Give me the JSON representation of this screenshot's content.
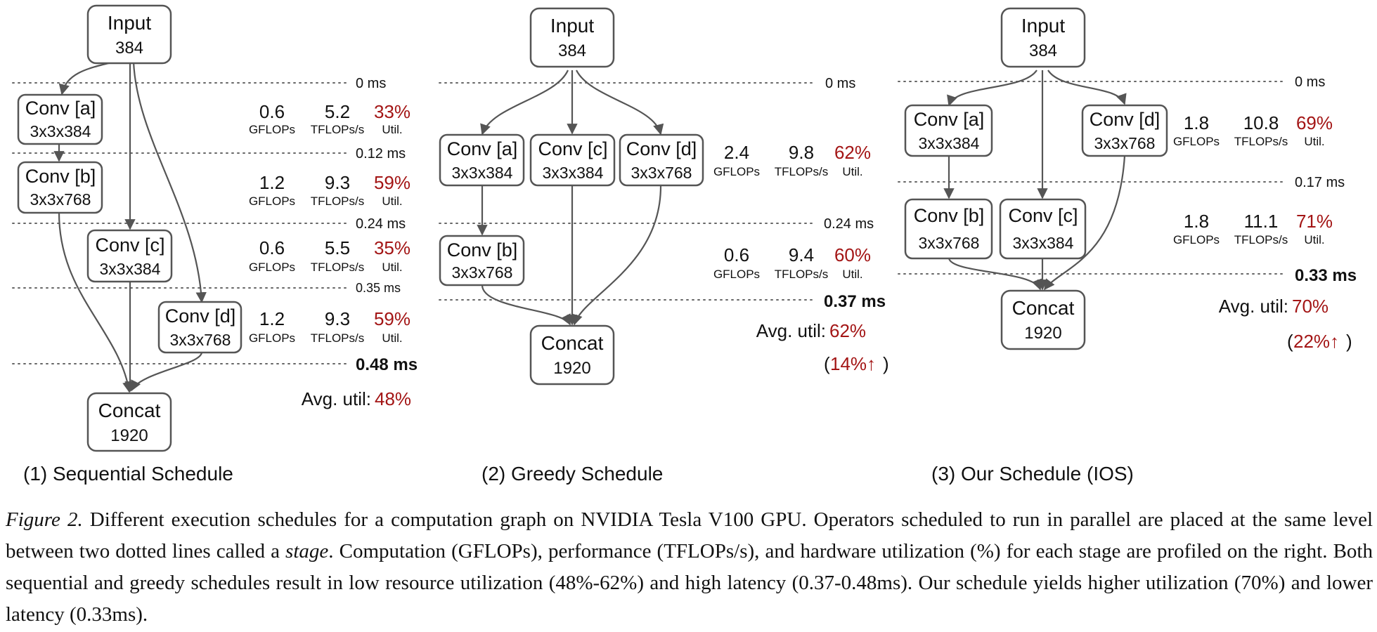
{
  "panels": {
    "sequential": {
      "title": "(1) Sequential Schedule",
      "nodes": {
        "input": {
          "name": "Input",
          "size": "384"
        },
        "conv_a": {
          "name": "Conv [a]",
          "size": "3x3x384"
        },
        "conv_b": {
          "name": "Conv [b]",
          "size": "3x3x768"
        },
        "conv_c": {
          "name": "Conv [c]",
          "size": "3x3x384"
        },
        "conv_d": {
          "name": "Conv [d]",
          "size": "3x3x768"
        },
        "concat": {
          "name": "Concat",
          "size": "1920"
        }
      },
      "times": [
        "0 ms",
        "0.12 ms",
        "0.24 ms",
        "0.35 ms",
        "0.48 ms"
      ],
      "stages": [
        {
          "gflops": "0.6",
          "tflops": "5.2",
          "util": "33%"
        },
        {
          "gflops": "1.2",
          "tflops": "9.3",
          "util": "59%"
        },
        {
          "gflops": "0.6",
          "tflops": "5.5",
          "util": "35%"
        },
        {
          "gflops": "1.2",
          "tflops": "9.3",
          "util": "59%"
        }
      ],
      "avg_label": "Avg. util:",
      "avg_value": "48%"
    },
    "greedy": {
      "title": "(2) Greedy Schedule",
      "nodes": {
        "input": {
          "name": "Input",
          "size": "384"
        },
        "conv_a": {
          "name": "Conv [a]",
          "size": "3x3x384"
        },
        "conv_c": {
          "name": "Conv [c]",
          "size": "3x3x384"
        },
        "conv_d": {
          "name": "Conv [d]",
          "size": "3x3x768"
        },
        "conv_b": {
          "name": "Conv [b]",
          "size": "3x3x768"
        },
        "concat": {
          "name": "Concat",
          "size": "1920"
        }
      },
      "times": [
        "0 ms",
        "0.24 ms",
        "0.37 ms"
      ],
      "stages": [
        {
          "gflops": "2.4",
          "tflops": "9.8",
          "util": "62%"
        },
        {
          "gflops": "0.6",
          "tflops": "9.4",
          "util": "60%"
        }
      ],
      "avg_label": "Avg. util:",
      "avg_value": "62%",
      "gain_open": "(",
      "gain_value": "14%↑",
      "gain_close": ")"
    },
    "ios": {
      "title": "(3)  Our Schedule (IOS)",
      "nodes": {
        "input": {
          "name": "Input",
          "size": "384"
        },
        "conv_a": {
          "name": "Conv [a]",
          "size": "3x3x384"
        },
        "conv_d": {
          "name": "Conv [d]",
          "size": "3x3x768"
        },
        "conv_b": {
          "name": "Conv [b]",
          "size": "3x3x768"
        },
        "conv_c": {
          "name": "Conv [c]",
          "size": "3x3x384"
        },
        "concat": {
          "name": "Concat",
          "size": "1920"
        }
      },
      "times": [
        "0 ms",
        "0.17 ms",
        "0.33 ms"
      ],
      "stages": [
        {
          "gflops": "1.8",
          "tflops": "10.8",
          "util": "69%"
        },
        {
          "gflops": "1.8",
          "tflops": "11.1",
          "util": "71%"
        }
      ],
      "avg_label": "Avg. util:",
      "avg_value": "70%",
      "gain_open": "(",
      "gain_value": "22%↑",
      "gain_close": ")"
    }
  },
  "stage_labels": {
    "gflops": "GFLOPs",
    "tflops": "TFLOPs/s",
    "util": "Util."
  },
  "caption": {
    "label": "Figure 2.",
    "text_1": " Different execution schedules for a computation graph on NVIDIA Tesla V100 GPU. Operators scheduled to run in parallel are placed at the same level between two dotted lines called a ",
    "stage_word": "stage",
    "text_2": ". Computation (GFLOPs), performance (TFLOPs/s), and hardware utilization (%) for each stage are profiled on the right. Both sequential and greedy schedules result in low resource utilization (48%-62%) and high latency (0.37-0.48ms). Our schedule yields higher utilization (70%) and lower latency (0.33ms)."
  },
  "colors": {
    "accent_red": "#a31515",
    "edge": "#555555",
    "text": "#111111"
  }
}
